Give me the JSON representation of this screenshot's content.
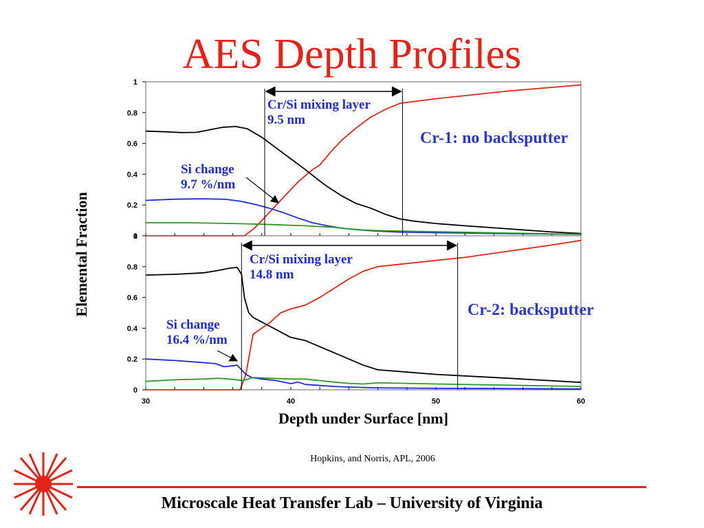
{
  "slide": {
    "title": "AES Depth Profiles",
    "citation": "Hopkins, and Norris, APL, 2006",
    "footer": "Microscale Heat Transfer Lab – University of Virginia",
    "ylabel": "Elemental Fraction",
    "xlabel": "Depth under Surface [nm]",
    "accent_color": "#e2231a",
    "annotation_color": "#1f2bd1"
  },
  "annotations": {
    "top_mixing_line1": "Cr/Si mixing layer",
    "top_mixing_line2": "9.5 nm",
    "top_si_line1": "Si change",
    "top_si_line2": "9.7 %/nm",
    "top_label": "Cr-1: no backsputter",
    "bottom_mixing_line1": "Cr/Si mixing layer",
    "bottom_mixing_line2": "14.8 nm",
    "bottom_si_line1": "Si change",
    "bottom_si_line2": "16.4 %/nm",
    "bottom_label": "Cr-2: backsputter"
  },
  "chart_data": [
    {
      "type": "line",
      "xlim": [
        30,
        60
      ],
      "ylim": [
        0,
        1
      ],
      "x_ticks": [
        "30",
        "40",
        "50",
        "60"
      ],
      "y_ticks": [
        "0",
        "0.2",
        "0.4",
        "0.6",
        "0.8",
        "1"
      ],
      "markers": [
        38.2,
        47.7
      ],
      "series": [
        {
          "color": "#e0261b",
          "x": [
            30,
            36.8,
            37.5,
            38.5,
            39.5,
            40.5,
            41.5,
            42,
            42.8,
            43.5,
            44.5,
            45.5,
            46.5,
            47.5,
            50,
            55,
            60
          ],
          "y": [
            0,
            0,
            0.05,
            0.15,
            0.25,
            0.35,
            0.43,
            0.46,
            0.55,
            0.62,
            0.7,
            0.77,
            0.82,
            0.86,
            0.89,
            0.94,
            0.98
          ]
        },
        {
          "color": "#000000",
          "x": [
            30,
            31.5,
            32.5,
            33.5,
            34.5,
            35.3,
            36.2,
            37,
            38,
            39,
            40,
            41,
            41.8,
            42.5,
            43.5,
            44.5,
            45.5,
            46.5,
            47.5,
            48.5,
            50,
            52,
            55,
            58,
            60
          ],
          "y": [
            0.68,
            0.675,
            0.67,
            0.672,
            0.69,
            0.705,
            0.71,
            0.695,
            0.64,
            0.57,
            0.5,
            0.43,
            0.37,
            0.32,
            0.26,
            0.21,
            0.18,
            0.14,
            0.11,
            0.095,
            0.08,
            0.065,
            0.045,
            0.025,
            0.015
          ]
        },
        {
          "color": "#1f2bd1",
          "x": [
            30,
            32,
            34,
            35.5,
            36.5,
            37.5,
            38.5,
            39.5,
            40.5,
            41.5,
            42.5,
            43.5,
            44.5,
            45.5,
            46.5,
            47.5,
            50,
            55,
            60
          ],
          "y": [
            0.23,
            0.238,
            0.24,
            0.237,
            0.225,
            0.205,
            0.18,
            0.15,
            0.115,
            0.085,
            0.065,
            0.05,
            0.04,
            0.033,
            0.028,
            0.024,
            0.02,
            0.014,
            0.01
          ]
        },
        {
          "color": "#2a9a2a",
          "x": [
            30,
            33,
            36,
            38,
            39.5,
            41,
            42,
            43,
            44,
            45,
            46,
            48,
            50,
            55,
            60
          ],
          "y": [
            0.085,
            0.085,
            0.08,
            0.075,
            0.07,
            0.065,
            0.06,
            0.055,
            0.045,
            0.038,
            0.034,
            0.03,
            0.027,
            0.018,
            0.01
          ]
        }
      ]
    },
    {
      "type": "line",
      "xlim": [
        30,
        60
      ],
      "ylim": [
        0,
        1
      ],
      "x_ticks": [
        "30",
        "40",
        "50",
        "60"
      ],
      "y_ticks": [
        "0",
        "0.2",
        "0.4",
        "0.6",
        "0.8",
        "1"
      ],
      "markers": [
        36.6,
        51.5
      ],
      "series": [
        {
          "color": "#e0261b",
          "x": [
            30,
            36.5,
            36.9,
            37.4,
            38,
            38.6,
            39.3,
            40,
            41,
            42,
            43,
            44,
            45,
            46,
            48,
            50,
            52,
            55,
            58,
            60
          ],
          "y": [
            0,
            0,
            0.1,
            0.36,
            0.4,
            0.44,
            0.5,
            0.525,
            0.55,
            0.6,
            0.66,
            0.72,
            0.77,
            0.8,
            0.82,
            0.84,
            0.86,
            0.9,
            0.94,
            0.97
          ]
        },
        {
          "color": "#000000",
          "x": [
            30,
            32,
            34,
            35,
            35.8,
            36.3,
            36.6,
            36.8,
            37.1,
            37.4,
            38,
            39,
            40,
            41,
            42,
            43,
            44,
            45,
            46,
            48,
            50,
            55,
            60
          ],
          "y": [
            0.745,
            0.75,
            0.76,
            0.775,
            0.79,
            0.795,
            0.75,
            0.6,
            0.5,
            0.47,
            0.44,
            0.39,
            0.34,
            0.32,
            0.28,
            0.24,
            0.2,
            0.16,
            0.13,
            0.115,
            0.1,
            0.075,
            0.048
          ]
        },
        {
          "color": "#1f2bd1",
          "x": [
            30,
            32,
            33.5,
            34.8,
            35.4,
            35.9,
            36.3,
            36.6,
            36.9,
            37.3,
            38,
            39,
            40,
            40.5,
            41,
            42,
            43,
            44,
            45,
            46,
            48,
            50,
            55,
            60
          ],
          "y": [
            0.2,
            0.19,
            0.18,
            0.17,
            0.15,
            0.155,
            0.16,
            0.13,
            0.1,
            0.08,
            0.07,
            0.06,
            0.04,
            0.05,
            0.035,
            0.028,
            0.022,
            0.018,
            0.015,
            0.013,
            0.011,
            0.01,
            0.008,
            0.006
          ]
        },
        {
          "color": "#2a9a2a",
          "x": [
            30,
            32,
            34,
            35,
            36,
            36.7,
            37.4,
            38.5,
            40,
            41,
            42,
            43,
            44,
            45,
            46,
            48,
            50,
            55,
            60
          ],
          "y": [
            0.055,
            0.065,
            0.07,
            0.075,
            0.068,
            0.06,
            0.08,
            0.075,
            0.07,
            0.07,
            0.06,
            0.05,
            0.042,
            0.038,
            0.045,
            0.042,
            0.038,
            0.03,
            0.022
          ]
        }
      ]
    }
  ]
}
